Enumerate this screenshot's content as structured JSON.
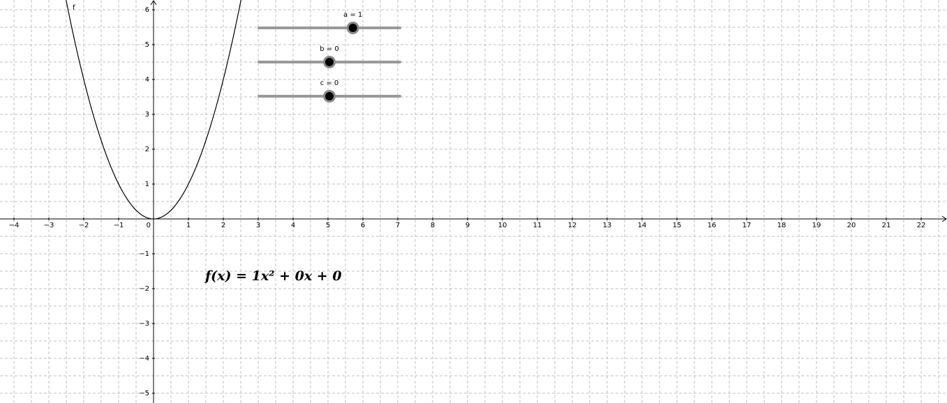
{
  "graph": {
    "xlim": [
      -4.4,
      22.74
    ],
    "ylim": [
      -5.28,
      6.28
    ],
    "grid_step": 0.5,
    "xticks": [
      {
        "value": -4,
        "label": "−4"
      },
      {
        "value": -3,
        "label": "−3"
      },
      {
        "value": -2,
        "label": "−2"
      },
      {
        "value": -1,
        "label": "−1"
      },
      0,
      1,
      2,
      3,
      4,
      5,
      6,
      7,
      8,
      9,
      10,
      11,
      12,
      13,
      14,
      15,
      16,
      17,
      18,
      19,
      20,
      21,
      22
    ],
    "yticks": [
      {
        "value": -5,
        "label": "−5"
      },
      {
        "value": -4,
        "label": "−4"
      },
      {
        "value": -3,
        "label": "−3"
      },
      {
        "value": -2,
        "label": "−2"
      },
      {
        "value": -1,
        "label": "−1"
      },
      1,
      2,
      3,
      4,
      5,
      6
    ],
    "function_label": "f",
    "formula": "f(x) = 1x² + 0x + 0"
  },
  "sliders": [
    {
      "label": "a = 1",
      "value": 1,
      "min": -3,
      "max": 3
    },
    {
      "label": "b = 0",
      "value": 0,
      "min": -3,
      "max": 3
    },
    {
      "label": "c = 0",
      "value": 0,
      "min": -3,
      "max": 3
    }
  ]
}
